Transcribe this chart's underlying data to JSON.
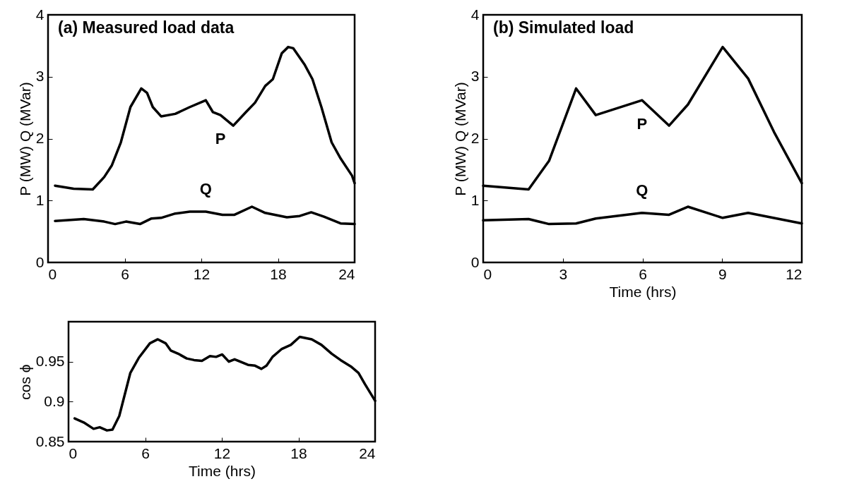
{
  "chart_data": [
    {
      "type": "line",
      "title": "(a) Measured load data",
      "ylabel": "P (MW)  Q (MVar)",
      "xlim": [
        0,
        24
      ],
      "xticks": [
        0,
        6,
        12,
        18,
        24
      ],
      "ylim": [
        0,
        4
      ],
      "yticks": [
        0,
        1,
        2,
        3,
        4
      ],
      "series": [
        {
          "name": "P",
          "color": "#000000",
          "x": [
            0.55,
            2.0,
            3.5,
            4.4,
            5.0,
            5.7,
            6.45,
            7.3,
            7.75,
            8.2,
            8.85,
            9.96,
            11.1,
            12.35,
            12.9,
            13.5,
            14.5,
            15.5,
            16.2,
            17.0,
            17.6,
            18.3,
            18.8,
            19.2,
            20.1,
            20.7,
            21.4,
            22.2,
            22.9,
            23.8,
            24
          ],
          "values": [
            1.24,
            1.19,
            1.18,
            1.38,
            1.57,
            1.94,
            2.51,
            2.81,
            2.74,
            2.51,
            2.36,
            2.4,
            2.51,
            2.62,
            2.43,
            2.38,
            2.21,
            2.43,
            2.58,
            2.85,
            2.96,
            3.38,
            3.48,
            3.46,
            3.19,
            2.96,
            2.51,
            1.94,
            1.68,
            1.4,
            1.28
          ]
        },
        {
          "name": "Q",
          "color": "#000000",
          "x": [
            0.55,
            2.8,
            4.4,
            5.25,
            6.1,
            7.2,
            8.1,
            8.85,
            9.96,
            11.1,
            12.35,
            13.65,
            14.6,
            15.96,
            17.0,
            18.7,
            19.7,
            20.6,
            21.6,
            22.9,
            24
          ],
          "values": [
            0.67,
            0.7,
            0.66,
            0.62,
            0.66,
            0.62,
            0.71,
            0.72,
            0.79,
            0.82,
            0.82,
            0.77,
            0.77,
            0.9,
            0.8,
            0.73,
            0.75,
            0.81,
            0.74,
            0.63,
            0.62
          ]
        }
      ]
    },
    {
      "type": "line",
      "title": "(b) Simulated load",
      "xlabel": "Time (hrs)",
      "ylabel": "P (MW)  Q (MVar)",
      "xlim": [
        0,
        12
      ],
      "xticks": [
        0,
        3,
        6,
        9,
        12
      ],
      "ylim": [
        0,
        4
      ],
      "yticks": [
        0,
        1,
        2,
        3,
        4
      ],
      "series": [
        {
          "name": "P",
          "color": "#000000",
          "x": [
            0,
            1.71,
            2.48,
            3.5,
            4.24,
            5.98,
            7.0,
            7.71,
            9.02,
            9.98,
            10.95,
            12
          ],
          "values": [
            1.24,
            1.18,
            1.64,
            2.81,
            2.38,
            2.62,
            2.21,
            2.55,
            3.48,
            2.97,
            2.11,
            1.28
          ]
        },
        {
          "name": "Q",
          "color": "#000000",
          "x": [
            0,
            1.71,
            2.48,
            3.5,
            4.24,
            5.98,
            7.0,
            7.71,
            9.02,
            9.98,
            12
          ],
          "values": [
            0.68,
            0.7,
            0.62,
            0.63,
            0.71,
            0.8,
            0.77,
            0.9,
            0.72,
            0.8,
            0.63
          ]
        }
      ]
    },
    {
      "type": "line",
      "xlabel": "Time (hrs)",
      "ylabel": "cos ϕ",
      "xlim": [
        0,
        24
      ],
      "xticks": [
        0,
        6,
        12,
        18,
        24
      ],
      "ylim": [
        0.85,
        1
      ],
      "yticks": [
        0.85,
        0.9,
        0.95
      ],
      "series": [
        {
          "color": "#000000",
          "x": [
            0.48,
            1.19,
            1.96,
            2.44,
            3.01,
            3.44,
            3.97,
            4.84,
            5.51,
            6.37,
            6.99,
            7.6,
            8.0,
            8.58,
            9.25,
            9.83,
            10.44,
            11.07,
            11.55,
            12.03,
            12.55,
            13.0,
            14.05,
            14.6,
            15.1,
            15.5,
            15.97,
            16.7,
            17.4,
            18.1,
            19.04,
            19.8,
            20.6,
            21.3,
            22.1,
            22.7,
            23.2,
            24
          ],
          "values": [
            0.879,
            0.874,
            0.866,
            0.868,
            0.864,
            0.865,
            0.882,
            0.936,
            0.955,
            0.973,
            0.978,
            0.973,
            0.964,
            0.96,
            0.954,
            0.952,
            0.951,
            0.957,
            0.956,
            0.959,
            0.95,
            0.953,
            0.946,
            0.945,
            0.941,
            0.945,
            0.956,
            0.966,
            0.971,
            0.981,
            0.978,
            0.971,
            0.96,
            0.952,
            0.944,
            0.936,
            0.922,
            0.901
          ]
        }
      ]
    }
  ]
}
